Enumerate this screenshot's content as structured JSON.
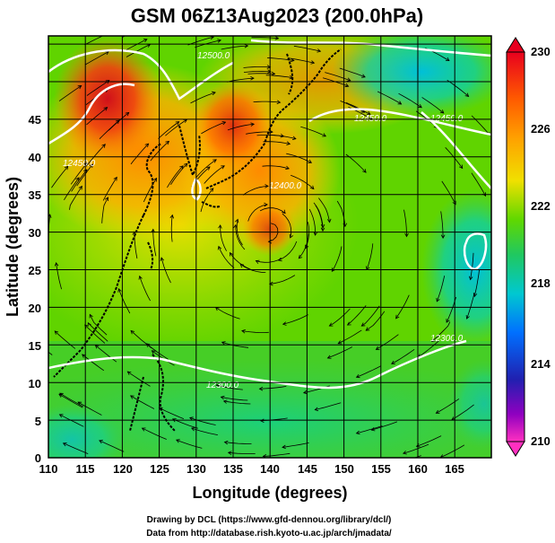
{
  "title": "GSM 06Z13Aug2023 (200.0hPa)",
  "x_axis": {
    "label": "Longitude (degrees)",
    "ticks": [
      "110",
      "115",
      "120",
      "125",
      "130",
      "135",
      "140",
      "145",
      "150",
      "155",
      "160",
      "165"
    ]
  },
  "y_axis": {
    "label": "Latitude  (degrees)",
    "ticks": [
      "0",
      "5",
      "10",
      "15",
      "20",
      "25",
      "30",
      "35",
      "40",
      "45"
    ]
  },
  "colorbar": {
    "ticks": [
      "230",
      "226",
      "222",
      "218",
      "214",
      "210"
    ],
    "colors": [
      "#e8001e",
      "#ff7a00",
      "#ffd000",
      "#7ee000",
      "#20c850",
      "#00c8c8",
      "#0080ff",
      "#2020c0",
      "#a000c0",
      "#ff30c0"
    ]
  },
  "contour_labels": [
    "12450.0",
    "12450.0",
    "12450.0",
    "12300.0",
    "12300.0",
    "12400.0",
    "12500.0"
  ],
  "credits": {
    "line1": "Drawing by DCL (https://www.gfd-dennou.org/library/dcl/)",
    "line2": "Data from http://database.rish.kyoto-u.ac.jp/arch/jmadata/"
  }
}
